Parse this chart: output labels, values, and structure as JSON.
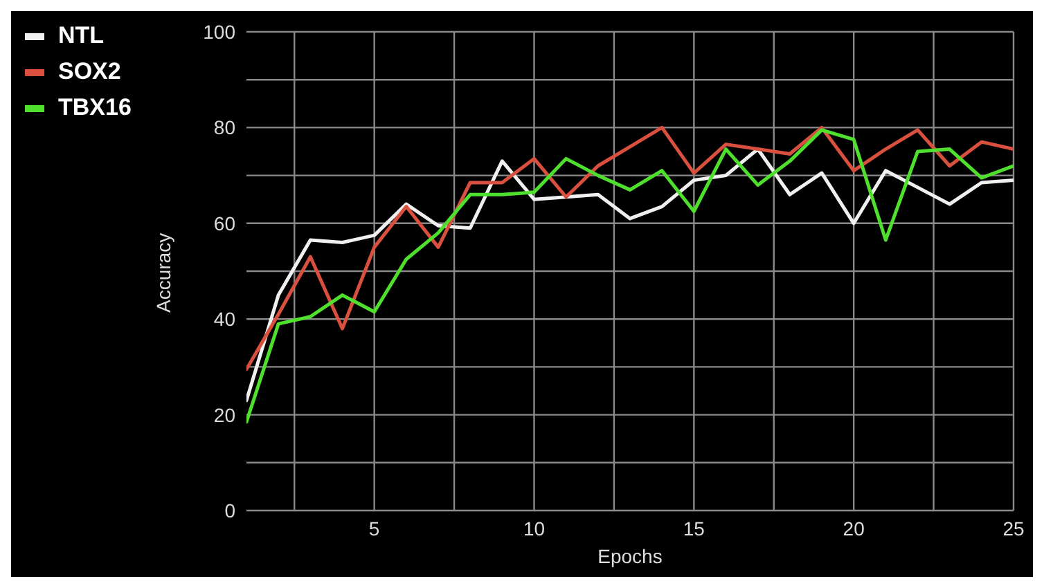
{
  "chart_data": {
    "type": "line",
    "xlabel": "Epochs",
    "ylabel": "Accuracy",
    "x": [
      1,
      2,
      3,
      4,
      5,
      6,
      7,
      8,
      9,
      10,
      11,
      12,
      13,
      14,
      15,
      16,
      17,
      18,
      19,
      20,
      21,
      22,
      23,
      24,
      25
    ],
    "series": [
      {
        "name": "NTL",
        "color": "#f0f0f0",
        "values": [
          23,
          45,
          56.5,
          56,
          57.5,
          64,
          59.5,
          59,
          73,
          65,
          65.5,
          66,
          61,
          63.5,
          69,
          70,
          75.5,
          66,
          70.5,
          60,
          71,
          67.5,
          64,
          68.5,
          69
        ]
      },
      {
        "name": "SOX2",
        "color": "#d9503f",
        "values": [
          29.5,
          41,
          53,
          38,
          55,
          63.5,
          55,
          68.5,
          68.5,
          73.5,
          65.5,
          72,
          76,
          80,
          70.5,
          76.5,
          75.5,
          74.5,
          80,
          71,
          75.5,
          79.5,
          72,
          77,
          75.5
        ]
      },
      {
        "name": "TBX16",
        "color": "#4fe02e",
        "values": [
          18.5,
          39,
          40.5,
          45,
          41.5,
          52.5,
          58,
          66,
          66,
          66.5,
          73.5,
          70,
          67,
          71,
          62.5,
          75.5,
          68,
          73,
          79.5,
          77.5,
          56.5,
          75,
          75.5,
          69.5,
          72
        ]
      }
    ],
    "xlim": [
      1,
      25
    ],
    "xticks": [
      {
        "value": 2.5,
        "label": null
      },
      5,
      {
        "value": 7.5,
        "label": null
      },
      10,
      {
        "value": 12.5,
        "label": null
      },
      15,
      {
        "value": 17.5,
        "label": null
      },
      20,
      {
        "value": 22.5,
        "label": null
      },
      25
    ],
    "ylim": [
      0,
      100
    ],
    "yticks": [
      0,
      {
        "value": 10,
        "label": null
      },
      20,
      {
        "value": 30,
        "label": null
      },
      40,
      {
        "value": 50,
        "label": null
      },
      60,
      {
        "value": 70,
        "label": null
      },
      80,
      {
        "value": 90,
        "label": null
      },
      100
    ],
    "grid": true,
    "legend": "top left",
    "marker": "none",
    "line_style": "solid"
  }
}
